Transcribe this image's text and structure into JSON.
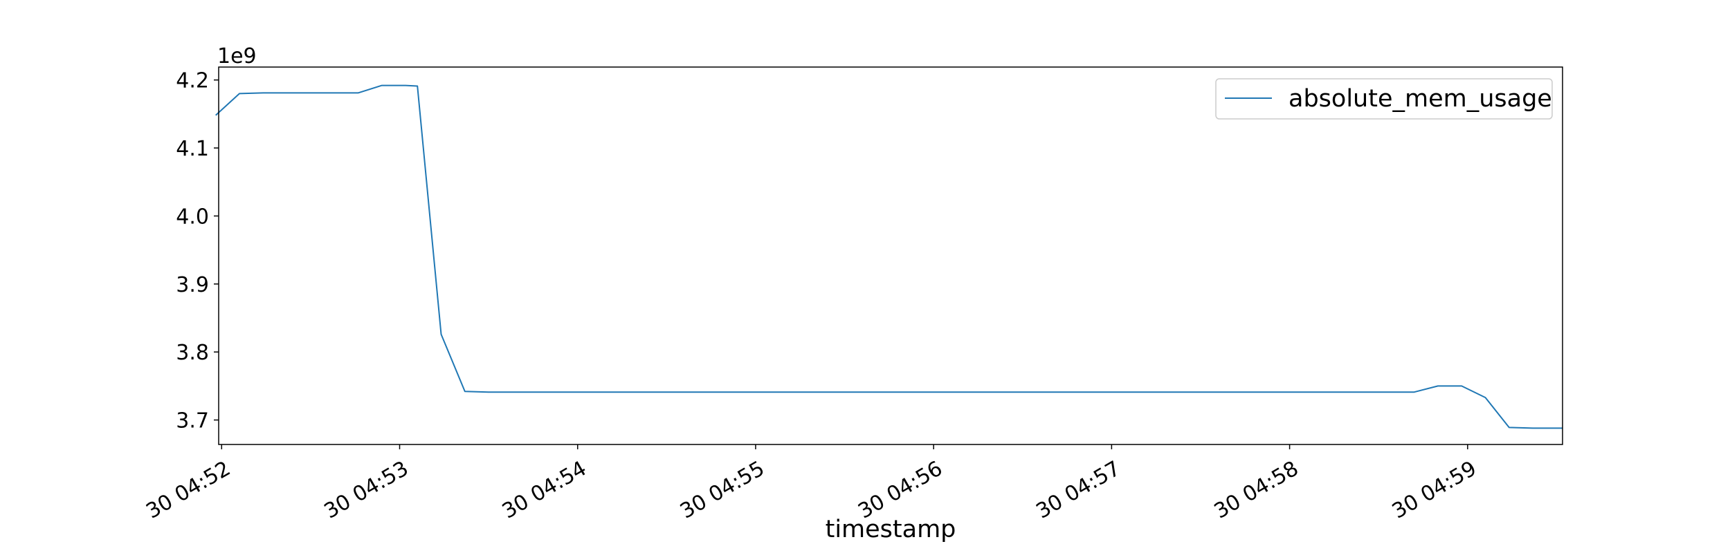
{
  "chart_data": {
    "type": "line",
    "xlabel": "timestamp",
    "ylabel": "",
    "y_offset_text": "1e9",
    "x_tick_labels": [
      "30 04:52",
      "30 04:53",
      "30 04:54",
      "30 04:55",
      "30 04:56",
      "30 04:57",
      "30 04:58",
      "30 04:59"
    ],
    "y_tick_labels": [
      "3.7",
      "3.8",
      "3.9",
      "4.0",
      "4.1",
      "4.2"
    ],
    "y_ticks": [
      3.7,
      3.8,
      3.9,
      4.0,
      4.1,
      4.2
    ],
    "xlim": [
      "04:51:59",
      "04:59:32"
    ],
    "ylim": [
      3.664,
      4.219
    ],
    "grid": false,
    "legend": "top-right",
    "series": [
      {
        "name": "absolute_mem_usage",
        "color": "#1f77b4",
        "x": [
          "04:51:58",
          "04:52:06",
          "04:52:14",
          "04:52:22",
          "04:52:30",
          "04:52:38",
          "04:52:46",
          "04:52:54",
          "04:53:02",
          "04:53:06",
          "04:53:14",
          "04:53:22",
          "04:53:30",
          "04:54:00",
          "04:55:00",
          "04:56:00",
          "04:57:00",
          "04:58:00",
          "04:58:42",
          "04:58:50",
          "04:58:58",
          "04:59:06",
          "04:59:14",
          "04:59:22",
          "04:59:32"
        ],
        "y": [
          4.148,
          4.18,
          4.181,
          4.181,
          4.181,
          4.181,
          4.181,
          4.192,
          4.192,
          4.191,
          3.826,
          3.742,
          3.741,
          3.741,
          3.741,
          3.741,
          3.741,
          3.741,
          3.741,
          3.75,
          3.75,
          3.733,
          3.689,
          3.688,
          3.688
        ]
      }
    ]
  }
}
